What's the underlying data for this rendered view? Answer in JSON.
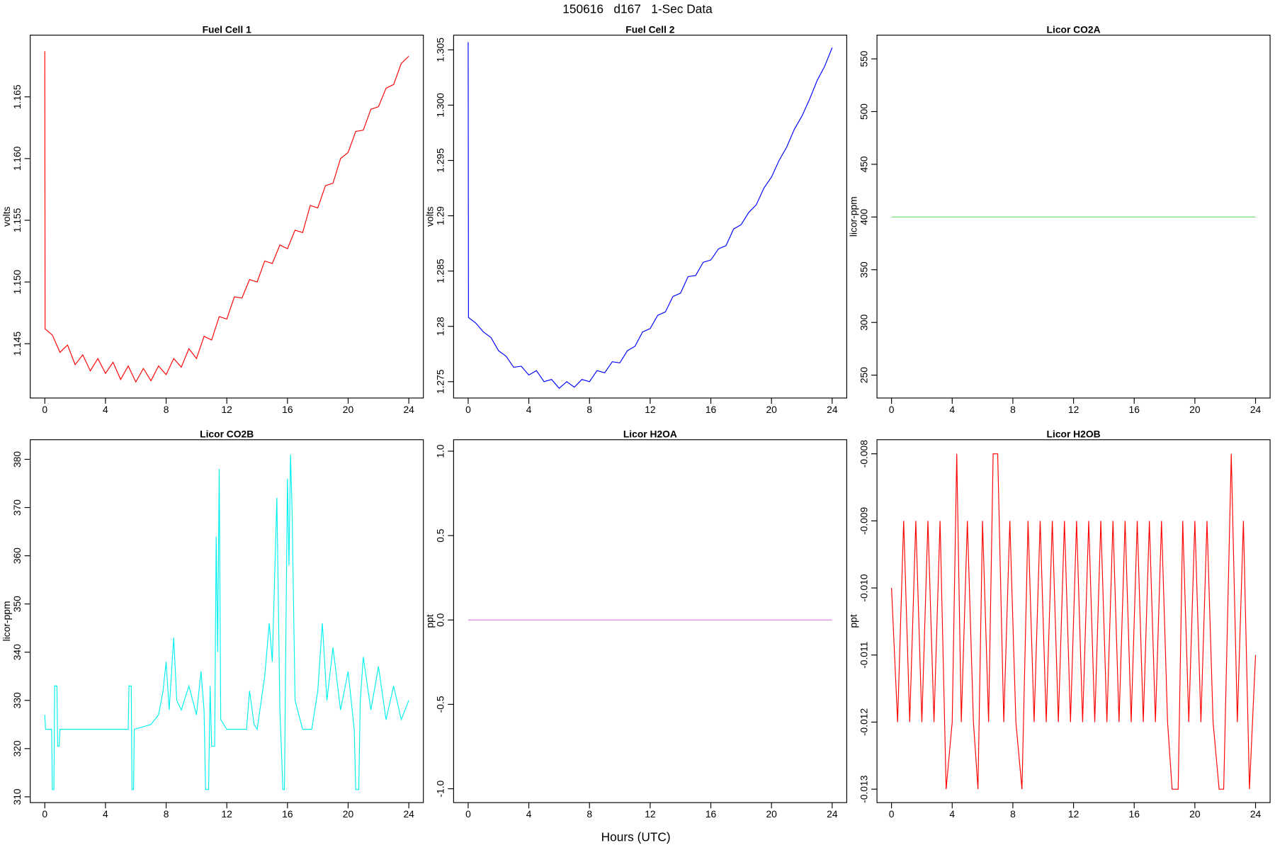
{
  "title": "150616   d167   1-Sec Data",
  "xlabel": "Hours (UTC)",
  "chart_data": [
    {
      "type": "line",
      "title": "Fuel Cell 1",
      "ylabel": "volts",
      "x": [
        0,
        0.02,
        0.5,
        1,
        1.5,
        2,
        2.5,
        3,
        3.5,
        4,
        4.5,
        5,
        5.5,
        6,
        6.5,
        7,
        7.5,
        8,
        8.5,
        9,
        9.5,
        10,
        10.5,
        11,
        11.5,
        12,
        12.5,
        13,
        13.5,
        14,
        14.5,
        15,
        15.5,
        16,
        16.5,
        17,
        17.5,
        18,
        18.5,
        19,
        19.5,
        20,
        20.5,
        21,
        21.5,
        22,
        22.5,
        23,
        23.5,
        24
      ],
      "series": [
        {
          "color": "#ff0000",
          "values": [
            1.1687,
            1.1462,
            1.1457,
            1.1443,
            1.1449,
            1.1433,
            1.1441,
            1.1428,
            1.1438,
            1.1426,
            1.1435,
            1.1421,
            1.1432,
            1.1419,
            1.143,
            1.142,
            1.1432,
            1.1425,
            1.1438,
            1.1431,
            1.1446,
            1.1438,
            1.1456,
            1.1453,
            1.1472,
            1.147,
            1.1488,
            1.1487,
            1.1502,
            1.15,
            1.1517,
            1.1515,
            1.153,
            1.1527,
            1.1542,
            1.154,
            1.1562,
            1.156,
            1.1578,
            1.158,
            1.16,
            1.1605,
            1.1622,
            1.1623,
            1.164,
            1.1642,
            1.1657,
            1.166,
            1.1677,
            1.1683
          ]
        }
      ],
      "xlim": [
        -0.96,
        24.96
      ],
      "ylim": [
        1.1406,
        1.17
      ],
      "xticks": [
        0,
        4,
        8,
        12,
        16,
        20,
        24
      ],
      "yticks": [
        1.145,
        {
          "value": 1.15,
          "label": "1.150"
        },
        1.155,
        {
          "value": 1.16,
          "label": "1.160"
        },
        1.165
      ]
    },
    {
      "type": "line",
      "title": "Fuel Cell 2",
      "ylabel": "volts",
      "x": [
        0,
        0.02,
        0.5,
        1,
        1.5,
        2,
        2.5,
        3,
        3.5,
        4,
        4.5,
        5,
        5.5,
        6,
        6.5,
        7,
        7.5,
        8,
        8.5,
        9,
        9.5,
        10,
        10.5,
        11,
        11.5,
        12,
        12.5,
        13,
        13.5,
        14,
        14.5,
        15,
        15.5,
        16,
        16.5,
        17,
        17.5,
        18,
        18.5,
        19,
        19.5,
        20,
        20.5,
        21,
        21.5,
        22,
        22.5,
        23,
        23.5,
        24
      ],
      "series": [
        {
          "color": "#0000ff",
          "values": [
            1.3057,
            1.2808,
            1.2803,
            1.2795,
            1.279,
            1.2778,
            1.2773,
            1.2763,
            1.2764,
            1.2756,
            1.276,
            1.275,
            1.2752,
            1.2744,
            1.275,
            1.2745,
            1.2752,
            1.275,
            1.276,
            1.2758,
            1.2768,
            1.2767,
            1.2778,
            1.2782,
            1.2795,
            1.2798,
            1.281,
            1.2813,
            1.2827,
            1.283,
            1.2845,
            1.2846,
            1.2858,
            1.286,
            1.287,
            1.2873,
            1.2888,
            1.2892,
            1.2903,
            1.291,
            1.2925,
            1.2935,
            1.295,
            1.2962,
            1.2978,
            1.299,
            1.3005,
            1.3022,
            1.3035,
            1.3052
          ]
        }
      ],
      "xlim": [
        -0.96,
        24.96
      ],
      "ylim": [
        1.27352,
        1.30633
      ],
      "xticks": [
        0,
        4,
        8,
        12,
        16,
        20,
        24
      ],
      "yticks": [
        1.275,
        1.28,
        1.285,
        1.29,
        1.295,
        {
          "value": 1.3,
          "label": "1.300"
        },
        1.305
      ]
    },
    {
      "type": "line",
      "title": "Licor CO2A",
      "ylabel": "licor-ppm",
      "x": [
        0,
        24
      ],
      "series": [
        {
          "color": "#77e077",
          "values": [
            400,
            400
          ]
        }
      ],
      "xlim": [
        -0.96,
        24.96
      ],
      "ylim": [
        228.3,
        572.5
      ],
      "xticks": [
        0,
        4,
        8,
        12,
        16,
        20,
        24
      ],
      "yticks": [
        250,
        300,
        350,
        400,
        450,
        500,
        550
      ]
    },
    {
      "type": "line",
      "title": "Licor CO2B",
      "ylabel": "licor-ppm",
      "x": [
        0,
        0.05,
        0.45,
        0.5,
        0.6,
        0.65,
        0.8,
        0.85,
        0.95,
        1,
        3,
        5.5,
        5.55,
        5.7,
        5.75,
        5.85,
        5.9,
        7,
        7.5,
        7.8,
        8,
        8.2,
        8.5,
        8.7,
        9,
        9.5,
        10,
        10.3,
        10.5,
        10.6,
        10.8,
        10.9,
        11,
        11.2,
        11.3,
        11.4,
        11.5,
        11.6,
        12,
        13.3,
        13.5,
        13.8,
        14,
        14.5,
        14.8,
        15,
        15.3,
        15.5,
        15.7,
        15.8,
        15.9,
        16,
        16.1,
        16.2,
        16.3,
        16.5,
        17,
        17.6,
        18,
        18.3,
        18.6,
        19,
        19.5,
        20,
        20.4,
        20.5,
        20.7,
        20.8,
        21,
        21.5,
        22,
        22.5,
        23,
        23.5,
        24
      ],
      "series": [
        {
          "color": "#00f0f0",
          "values": [
            327,
            324,
            324,
            311.5,
            311.5,
            333,
            333,
            320.5,
            320.5,
            324,
            324,
            324,
            333,
            333,
            311.5,
            311.5,
            324,
            325,
            327,
            332,
            338,
            328,
            343,
            330,
            328,
            333,
            327,
            336,
            328,
            311.5,
            311.5,
            333,
            320.5,
            320.5,
            364,
            340,
            378,
            326,
            324,
            324,
            332,
            325,
            324,
            335,
            346,
            338,
            372,
            328,
            311.5,
            311.5,
            345,
            376,
            358,
            381,
            370,
            330,
            324,
            324,
            332,
            346,
            330,
            341,
            328,
            336,
            324,
            311.5,
            311.5,
            330,
            339,
            328,
            337,
            326,
            333,
            326,
            330
          ]
        }
      ],
      "xlim": [
        -0.96,
        24.96
      ],
      "ylim": [
        308.8,
        384.07
      ],
      "xticks": [
        0,
        4,
        8,
        12,
        16,
        20,
        24
      ],
      "yticks": [
        310,
        320,
        330,
        340,
        350,
        360,
        370,
        380
      ]
    },
    {
      "type": "line",
      "title": "Licor H2OA",
      "ylabel": "ppt",
      "x": [
        0,
        24
      ],
      "series": [
        {
          "color": "#dd88dd",
          "values": [
            0,
            0
          ]
        }
      ],
      "xlim": [
        -0.96,
        24.96
      ],
      "ylim": [
        -1.082,
        1.068
      ],
      "xticks": [
        0,
        4,
        8,
        12,
        16,
        20,
        24
      ],
      "yticks": [
        {
          "value": -1,
          "label": "-1.0"
        },
        -0.5,
        {
          "value": 0,
          "label": "0.0"
        },
        0.5,
        {
          "value": 1,
          "label": "1.0"
        }
      ]
    },
    {
      "type": "line",
      "title": "Licor H2OB",
      "ylabel": "ppt",
      "x": [
        0,
        0.4,
        0.8,
        1.2,
        1.6,
        2,
        2.4,
        2.8,
        3.2,
        3.6,
        4,
        4.3,
        4.6,
        5,
        5.4,
        5.7,
        6,
        6.4,
        6.7,
        7,
        7.4,
        7.8,
        8.2,
        8.6,
        9,
        9.4,
        9.8,
        10.2,
        10.6,
        11,
        11.4,
        11.8,
        12.2,
        12.6,
        13,
        13.4,
        13.8,
        14.2,
        14.6,
        15,
        15.4,
        15.8,
        16.2,
        16.6,
        17,
        17.4,
        17.8,
        18.2,
        18.5,
        18.9,
        19.2,
        19.6,
        20,
        20.4,
        20.8,
        21.2,
        21.6,
        21.9,
        22.3,
        22.4,
        22.8,
        23.2,
        23.6,
        24
      ],
      "series": [
        {
          "color": "#ff0000",
          "values": [
            -0.01,
            -0.012,
            -0.009,
            -0.012,
            -0.009,
            -0.012,
            -0.009,
            -0.012,
            -0.009,
            -0.013,
            -0.012,
            -0.008,
            -0.012,
            -0.009,
            -0.012,
            -0.013,
            -0.009,
            -0.012,
            -0.008,
            -0.008,
            -0.012,
            -0.009,
            -0.012,
            -0.013,
            -0.009,
            -0.012,
            -0.009,
            -0.012,
            -0.009,
            -0.012,
            -0.009,
            -0.012,
            -0.009,
            -0.012,
            -0.009,
            -0.012,
            -0.009,
            -0.012,
            -0.009,
            -0.012,
            -0.009,
            -0.012,
            -0.009,
            -0.012,
            -0.009,
            -0.012,
            -0.009,
            -0.012,
            -0.013,
            -0.013,
            -0.009,
            -0.012,
            -0.009,
            -0.012,
            -0.009,
            -0.012,
            -0.013,
            -0.013,
            -0.009,
            -0.008,
            -0.012,
            -0.009,
            -0.013,
            -0.011
          ]
        }
      ],
      "xlim": [
        -0.96,
        24.96
      ],
      "ylim": [
        -0.0132,
        -0.00779
      ],
      "xticks": [
        0,
        4,
        8,
        12,
        16,
        20,
        24
      ],
      "yticks": [
        -0.013,
        -0.012,
        -0.011,
        {
          "value": -0.01,
          "label": "-0.010"
        },
        -0.009,
        -0.008
      ]
    }
  ]
}
